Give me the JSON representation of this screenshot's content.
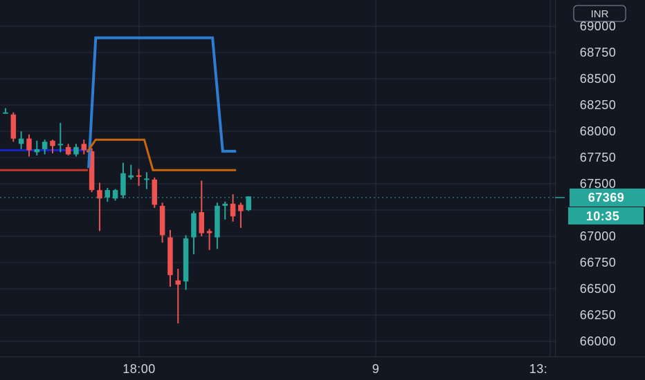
{
  "chart_data": {
    "type": "candlestick",
    "currency": "INR",
    "ylim": [
      65900,
      69150
    ],
    "y_ticks": [
      69000,
      68750,
      68500,
      68250,
      68000,
      67750,
      67500,
      67250,
      67000,
      66750,
      66500,
      66250,
      66000
    ],
    "y_tick_labels": [
      "69000",
      "68750",
      "68500",
      "68250",
      "68000",
      "67750",
      "67500",
      "67000",
      "66750",
      "66500",
      "66250",
      "66000"
    ],
    "x_labels": [
      "18:00",
      "9",
      "13:"
    ],
    "last_price": {
      "value": 67369,
      "label": "67369",
      "countdown": "10:35"
    },
    "colors": {
      "background": "#131722",
      "grid": "#2a2e39",
      "up": "#26a69a",
      "down": "#ef5350",
      "upper_band": "#2e7dd1",
      "mid_band": "#c8670f",
      "pre_level_blue": "#1a25c9",
      "pre_level_red": "#c0392b",
      "price_line": "#26a69a",
      "text": "#d1d4dc"
    },
    "candles": [
      {
        "o": 68180,
        "h": 68220,
        "l": 68180,
        "c": 68180
      },
      {
        "o": 68160,
        "h": 68180,
        "l": 67900,
        "c": 67930
      },
      {
        "o": 67880,
        "h": 68000,
        "l": 67830,
        "c": 67930
      },
      {
        "o": 67930,
        "h": 67970,
        "l": 67760,
        "c": 67820
      },
      {
        "o": 67800,
        "h": 67910,
        "l": 67770,
        "c": 67830
      },
      {
        "o": 67830,
        "h": 67920,
        "l": 67780,
        "c": 67900
      },
      {
        "o": 67910,
        "h": 67920,
        "l": 67790,
        "c": 67860
      },
      {
        "o": 67880,
        "h": 68080,
        "l": 67800,
        "c": 67880
      },
      {
        "o": 67850,
        "h": 67880,
        "l": 67770,
        "c": 67780
      },
      {
        "o": 67780,
        "h": 67880,
        "l": 67760,
        "c": 67850
      },
      {
        "o": 67880,
        "h": 67920,
        "l": 67780,
        "c": 67820
      },
      {
        "o": 67810,
        "h": 67840,
        "l": 67420,
        "c": 67440
      },
      {
        "o": 67440,
        "h": 67510,
        "l": 67050,
        "c": 67360
      },
      {
        "o": 67370,
        "h": 67460,
        "l": 67330,
        "c": 67440
      },
      {
        "o": 67360,
        "h": 67450,
        "l": 67340,
        "c": 67440
      },
      {
        "o": 67390,
        "h": 67700,
        "l": 67360,
        "c": 67600
      },
      {
        "o": 67560,
        "h": 67680,
        "l": 67540,
        "c": 67580
      },
      {
        "o": 67580,
        "h": 67640,
        "l": 67480,
        "c": 67570
      },
      {
        "o": 67550,
        "h": 67610,
        "l": 67450,
        "c": 67550
      },
      {
        "o": 67540,
        "h": 67560,
        "l": 67270,
        "c": 67300
      },
      {
        "o": 67290,
        "h": 67320,
        "l": 66940,
        "c": 67010
      },
      {
        "o": 66990,
        "h": 67060,
        "l": 66520,
        "c": 66630
      },
      {
        "o": 66580,
        "h": 66690,
        "l": 66170,
        "c": 66540
      },
      {
        "o": 66570,
        "h": 67010,
        "l": 66490,
        "c": 66980
      },
      {
        "o": 66990,
        "h": 67240,
        "l": 66830,
        "c": 67220
      },
      {
        "o": 67230,
        "h": 67530,
        "l": 67000,
        "c": 67030
      },
      {
        "o": 67050,
        "h": 67070,
        "l": 66870,
        "c": 67030
      },
      {
        "o": 66990,
        "h": 67320,
        "l": 66880,
        "c": 67290
      },
      {
        "o": 67290,
        "h": 67330,
        "l": 67160,
        "c": 67310
      },
      {
        "o": 67310,
        "h": 67400,
        "l": 67140,
        "c": 67190
      },
      {
        "o": 67300,
        "h": 67320,
        "l": 67080,
        "c": 67240
      },
      {
        "o": 67250,
        "h": 67380,
        "l": 67240,
        "c": 67380
      }
    ],
    "bands": {
      "upper": [
        {
          "i": 10.6,
          "v": 67650
        },
        {
          "i": 11.5,
          "v": 68890
        },
        {
          "i": 20,
          "v": 68890
        },
        {
          "i": 25,
          "v": 68890
        },
        {
          "i": 26.4,
          "v": 68890
        },
        {
          "i": 27.7,
          "v": 67810
        },
        {
          "i": 29.4,
          "v": 67810
        }
      ],
      "middle": [
        {
          "i": 10.4,
          "v": 67800
        },
        {
          "i": 11.5,
          "v": 67920
        },
        {
          "i": 17,
          "v": 67920
        },
        {
          "i": 17.7,
          "v": 67920
        },
        {
          "i": 18.8,
          "v": 67630
        },
        {
          "i": 29.4,
          "v": 67630
        }
      ],
      "pre_level_blue": [
        {
          "i": -0.7,
          "v": 67820
        },
        {
          "i": 10.5,
          "v": 67820
        }
      ],
      "pre_level_red": [
        {
          "i": -0.7,
          "v": 67630
        },
        {
          "i": 10.5,
          "v": 67630
        }
      ]
    }
  }
}
